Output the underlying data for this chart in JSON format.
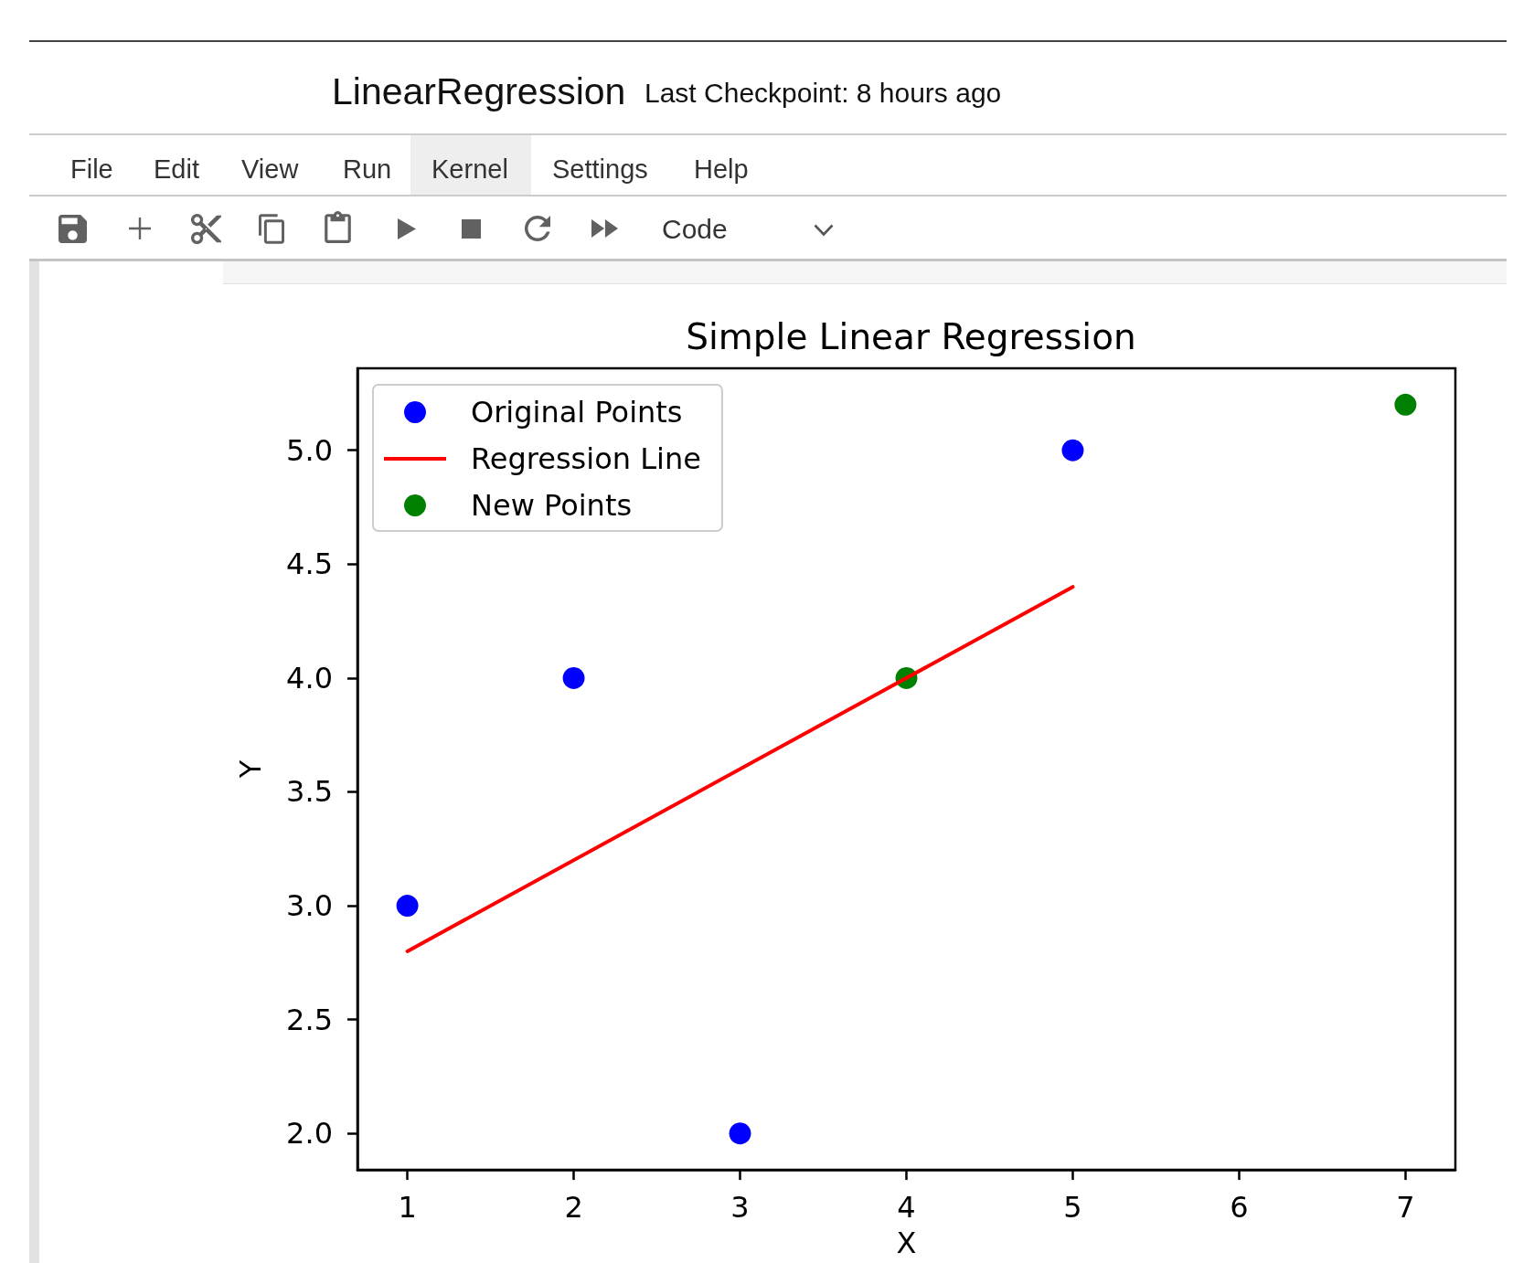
{
  "chart_data": {
    "type": "scatter",
    "title": "Simple Linear Regression",
    "xlabel": "X",
    "ylabel": "Y",
    "series": [
      {
        "name": "Original Points",
        "color": "#0000ff",
        "x": [
          1,
          2,
          3,
          5
        ],
        "values": [
          3,
          4,
          2,
          5
        ]
      },
      {
        "name": "Regression Line",
        "type": "line",
        "color": "#ff0000",
        "marker": "none",
        "x": [
          1,
          5
        ],
        "values": [
          2.8,
          4.4
        ]
      },
      {
        "name": "New Points",
        "color": "#008000",
        "x": [
          4,
          7
        ],
        "values": [
          4,
          5.2
        ]
      }
    ],
    "xlim": [
      0.7,
      7.3
    ],
    "xticks": [
      1,
      2,
      3,
      4,
      5,
      6,
      7
    ],
    "ylim": [
      1.84,
      5.36
    ],
    "yticks": [
      {
        "value": 2,
        "label": "2.0"
      },
      {
        "value": 2.5,
        "label": "2.5"
      },
      {
        "value": 3,
        "label": "3.0"
      },
      {
        "value": 3.5,
        "label": "3.5"
      },
      {
        "value": 4,
        "label": "4.0"
      },
      {
        "value": 4.5,
        "label": "4.5"
      },
      {
        "value": 5,
        "label": "5.0"
      }
    ],
    "legend": "top left",
    "grid": false,
    "marker": "circle",
    "line_style": "solid",
    "annotations": [
      "LinearRegression",
      "Last Checkpoint: 8 hours ago",
      "File",
      "Edit",
      "View",
      "Run",
      "Kernel",
      "Settings",
      "Help",
      "Code"
    ]
  }
}
